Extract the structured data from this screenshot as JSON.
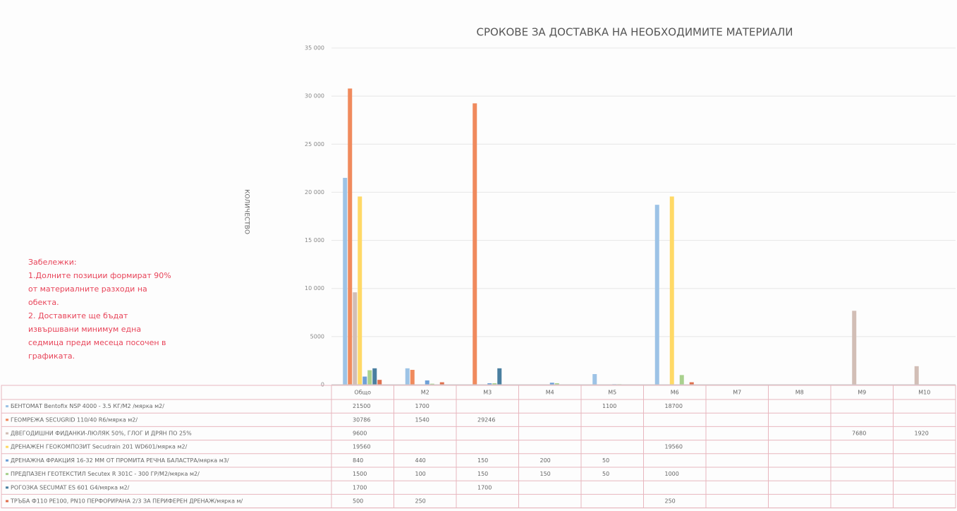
{
  "chart_data": {
    "type": "bar",
    "title": "СРОКОВЕ ЗА ДОСТАВКА НА НЕОБХОДИМИТЕ МАТЕРИАЛИ",
    "y_label": "КОЛИЧЕСТВО",
    "annotations": [
      "Забележки:",
      "1.Долните позиции формират 90%",
      "от материалните разходи на",
      "обекта.",
      "2. Доставките ще бъдат",
      "извършвани минимум една",
      "седмица преди месеца посочен в",
      "графиката."
    ],
    "categories": [
      "Общо",
      "М2",
      "М3",
      "М4",
      "М5",
      "М6",
      "М7",
      "М8",
      "М9",
      "М10"
    ],
    "ylim": [
      0,
      35000
    ],
    "yticks": [
      0,
      5000,
      {
        "value": 10000,
        "label": "10 000"
      },
      {
        "value": 15000,
        "label": "15 000"
      },
      {
        "value": 20000,
        "label": "20 000"
      },
      {
        "value": 25000,
        "label": "25 000"
      },
      {
        "value": 30000,
        "label": "30 000"
      },
      {
        "value": 35000,
        "label": "35 000"
      }
    ],
    "grid": true,
    "series": [
      {
        "name": "БЕНТОМАТ Bentofix NSP 4000 - 3.5 КГ/М2 /мярка м2/",
        "color": "#9dc3e6",
        "values": [
          21500,
          1700,
          null,
          null,
          1100,
          18700,
          null,
          null,
          null,
          null
        ]
      },
      {
        "name": "ГЕОМРЕЖА SECUGRID 110/40 R6/мярка м2/",
        "color": "#f08a5d",
        "values": [
          30786,
          1540,
          29246,
          null,
          null,
          null,
          null,
          null,
          null,
          null
        ]
      },
      {
        "name": "ДВЕГОДИШНИ ФИДАНКИ-ЛЮЛЯК 50%, ГЛОГ И ДРЯН ПО 25%",
        "color": "#d2beb6",
        "values": [
          9600,
          null,
          null,
          null,
          null,
          null,
          null,
          null,
          7680,
          1920
        ]
      },
      {
        "name": "ДРЕНАЖЕН ГЕОКОМПОЗИТ Secudrain 201 WD601/мярка м2/",
        "color": "#ffd966",
        "values": [
          19560,
          null,
          null,
          null,
          null,
          19560,
          null,
          null,
          null,
          null
        ]
      },
      {
        "name": "ДРЕНАЖНА ФРАКЦИЯ 16-32 ММ ОТ ПРОМИТА РЕЧНА БАЛАСТРА/мярка м3/",
        "color": "#6fa0d8",
        "values": [
          840,
          440,
          150,
          200,
          50,
          null,
          null,
          null,
          null,
          null
        ]
      },
      {
        "name": "ПРЕДПАЗЕН ГЕОТЕКСТИЛ Secutex R 301C - 300 ГР/М2/мярка м2/",
        "color": "#a9d18e",
        "values": [
          1500,
          100,
          150,
          150,
          50,
          1000,
          null,
          null,
          null,
          null
        ]
      },
      {
        "name": "РОГОЗКА SECUMAT ES 601 G4/мярка м2/",
        "color": "#4a7fa0",
        "values": [
          1700,
          null,
          1700,
          null,
          null,
          null,
          null,
          null,
          null,
          null
        ]
      },
      {
        "name": "ТРЪБА Ф110 PE100, PN10 ПЕРФОРИРАНА 2/3 ЗА ПЕРИФЕРЕН ДРЕНАЖ/мярка м/",
        "color": "#e0704e",
        "values": [
          500,
          250,
          null,
          null,
          null,
          250,
          null,
          null,
          null,
          null
        ]
      }
    ]
  }
}
